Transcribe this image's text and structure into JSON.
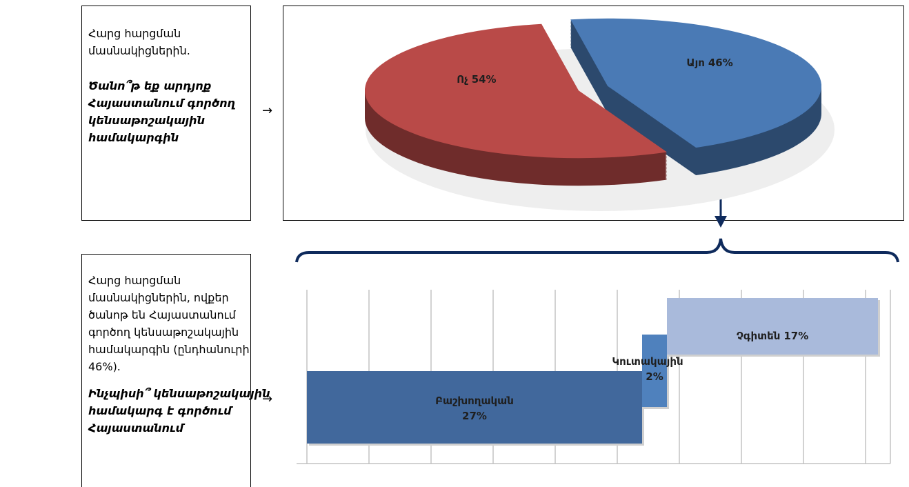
{
  "boxes": [
    {
      "lines": [
        "Հարց հարցման",
        "մասնակիցներին."
      ],
      "question": [
        "Ծանո՞թ եք արդյոք",
        "Հայաստանում գործող",
        "կենսաթոշակային",
        "համակարգին"
      ]
    },
    {
      "lines": [
        "Հարց հարցման",
        "մասնակիցներին, ովքեր",
        "ծանոթ են Հայաստանում",
        "գործող կենսաթոշակային",
        "համակարգին (ընդհանուրի",
        "46%)."
      ],
      "question": [
        "Ինչպիսի՞ կենսաթոշակային",
        "համակարգ է գործում",
        "Հայաստանում"
      ]
    }
  ],
  "arrows": [
    "→",
    "→"
  ],
  "chart_data": [
    {
      "type": "pie",
      "categories": [
        "Այո",
        "Ոչ"
      ],
      "values": [
        46,
        54
      ],
      "value_labels": [
        "46%",
        "54%"
      ],
      "colors": [
        "#4a7ab5",
        "#b94a48"
      ]
    },
    {
      "type": "bar",
      "orientation": "horizontal",
      "stacked": true,
      "categories": [
        "Բաշխողական",
        "Կուտակային",
        "Չգիտեն"
      ],
      "values": [
        27,
        2,
        17
      ],
      "value_labels": [
        "27%",
        "2%",
        "17%"
      ],
      "colors": [
        "#41689c",
        "#4f81bd",
        "#a9badb"
      ],
      "xlim": [
        0,
        47
      ],
      "xticks": [
        0,
        5,
        10,
        15,
        20,
        25,
        30,
        35,
        40,
        45
      ],
      "grid": true
    }
  ]
}
